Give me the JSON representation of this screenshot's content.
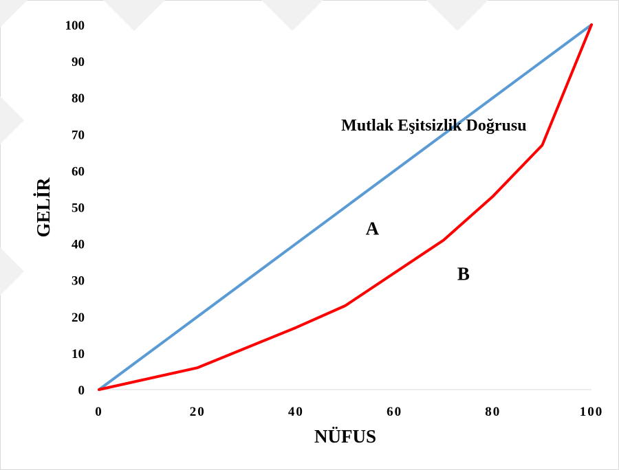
{
  "chart_data": {
    "type": "line",
    "xlabel": "NÜFUS",
    "ylabel": "GELİR",
    "xlim": [
      0,
      100
    ],
    "ylim": [
      0,
      100
    ],
    "x_ticks": [
      "0",
      "20",
      "40",
      "60",
      "80",
      "100"
    ],
    "y_ticks": [
      "0",
      "10",
      "20",
      "30",
      "40",
      "50",
      "60",
      "70",
      "80",
      "90",
      "100"
    ],
    "grid": false,
    "series": [
      {
        "color": "#5b9bd5",
        "x": [
          0,
          100
        ],
        "y": [
          0,
          100
        ]
      },
      {
        "color": "#ff0000",
        "x": [
          0,
          20,
          40,
          50,
          70,
          80,
          90,
          100
        ],
        "y": [
          0,
          6,
          17,
          23,
          41,
          53,
          67,
          100
        ]
      }
    ],
    "annotations": [
      {
        "text": "Mutlak Eşitsizlik Doğrusu",
        "x": 68,
        "y": 71
      },
      {
        "text": "A",
        "x": 55.5,
        "y": 42.5
      },
      {
        "text": "B",
        "x": 74,
        "y": 30
      }
    ]
  }
}
